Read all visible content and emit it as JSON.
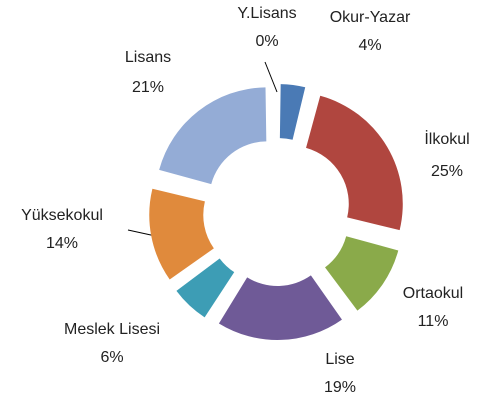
{
  "chart_data": {
    "type": "doughnut",
    "categories": [
      "Y.Lisans",
      "Okur-Yazar",
      "İlkokul",
      "Ortaokul",
      "Lise",
      "Meslek Lisesi",
      "Yüksekokul",
      "Lisans"
    ],
    "values": [
      0,
      4,
      25,
      11,
      19,
      6,
      14,
      21
    ],
    "value_labels": [
      "0%",
      "4%",
      "25%",
      "11%",
      "19%",
      "6%",
      "14%",
      "21%"
    ],
    "colors": [
      "#4f81bd",
      "#4a7ab5",
      "#b0463f",
      "#8aaa4a",
      "#6f5a97",
      "#3d9db5",
      "#e08a3c",
      "#94acd6"
    ],
    "exploded": true
  }
}
